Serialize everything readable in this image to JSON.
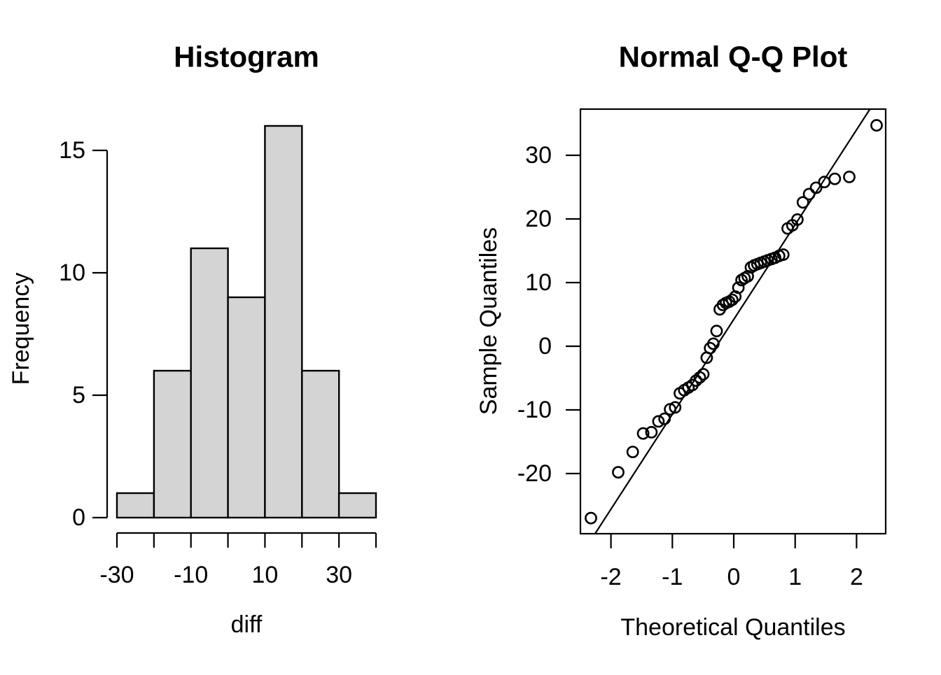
{
  "figure": {
    "background": "#ffffff",
    "foreground": "#000000"
  },
  "chart_data": [
    {
      "type": "bar",
      "subtype": "histogram",
      "title": "Histogram",
      "xlabel": "diff",
      "ylabel": "Frequency",
      "bins": {
        "breaks": [
          -30,
          -20,
          -10,
          0,
          10,
          20,
          30,
          40
        ],
        "counts": [
          1,
          6,
          11,
          9,
          16,
          6,
          1
        ]
      },
      "xlim": [
        -30,
        40
      ],
      "ylim": [
        0,
        16
      ],
      "x_ticks_all": [
        -30,
        -20,
        -10,
        0,
        10,
        20,
        30,
        40
      ],
      "x_ticks_labeled": [
        -30,
        -10,
        10,
        30
      ],
      "y_ticks": [
        0,
        5,
        10,
        15
      ],
      "bar_fill": "#d4d4d4",
      "bar_stroke": "#000000",
      "grid": false,
      "legend": "none"
    },
    {
      "type": "scatter",
      "subtype": "normal-qq-plot",
      "title": "Normal Q-Q Plot",
      "xlabel": "Theoretical Quantiles",
      "ylabel": "Sample Quantiles",
      "marker": "open-circle",
      "x_ticks": [
        -2,
        -1,
        0,
        1,
        2
      ],
      "y_ticks": [
        -20,
        -10,
        0,
        10,
        20,
        30
      ],
      "xlim": [
        -2.5,
        2.47
      ],
      "ylim": [
        -29.5,
        37.2
      ],
      "theoretical": [
        -2.326,
        -1.881,
        -1.645,
        -1.476,
        -1.341,
        -1.227,
        -1.126,
        -1.036,
        -0.954,
        -0.878,
        -0.806,
        -0.739,
        -0.674,
        -0.613,
        -0.553,
        -0.496,
        -0.44,
        -0.385,
        -0.332,
        -0.279,
        -0.228,
        -0.176,
        -0.126,
        -0.075,
        -0.025,
        0.025,
        0.075,
        0.126,
        0.176,
        0.228,
        0.279,
        0.332,
        0.385,
        0.44,
        0.496,
        0.553,
        0.613,
        0.674,
        0.739,
        0.806,
        0.878,
        0.954,
        1.036,
        1.126,
        1.227,
        1.341,
        1.476,
        1.645,
        1.881,
        2.326
      ],
      "sample": [
        -27.0,
        -19.8,
        -16.6,
        -13.7,
        -13.5,
        -11.8,
        -11.4,
        -9.9,
        -9.6,
        -7.4,
        -6.9,
        -6.5,
        -6.1,
        -5.4,
        -4.9,
        -4.4,
        -1.8,
        -0.3,
        0.4,
        2.4,
        5.8,
        6.5,
        6.8,
        7.0,
        7.3,
        7.8,
        9.2,
        10.4,
        10.7,
        11.0,
        12.4,
        12.7,
        12.9,
        13.1,
        13.3,
        13.5,
        13.7,
        13.9,
        14.2,
        14.4,
        18.5,
        19.0,
        19.9,
        22.6,
        23.9,
        24.9,
        25.8,
        26.3,
        26.6,
        34.7
      ],
      "qqline": {
        "slope": 14.9,
        "intercept": 4.2
      },
      "grid": false,
      "legend": "none"
    }
  ]
}
